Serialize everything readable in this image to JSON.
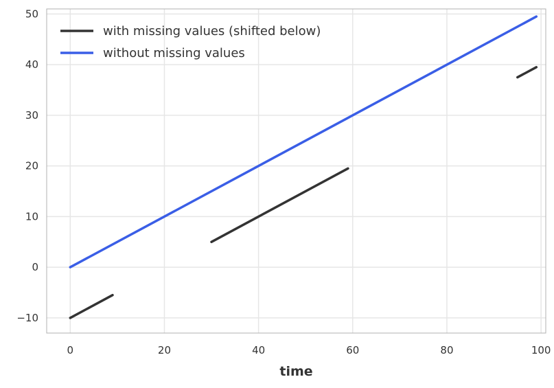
{
  "chart_data": {
    "type": "line",
    "xlabel": "time",
    "ylabel": "",
    "xlim": [
      -5,
      101
    ],
    "ylim": [
      -13,
      51
    ],
    "xticks": [
      0,
      20,
      40,
      60,
      80,
      100
    ],
    "yticks": [
      -10,
      0,
      10,
      20,
      30,
      40,
      50
    ],
    "xtick_labels": [
      "0",
      "20",
      "40",
      "60",
      "80",
      "100"
    ],
    "ytick_labels": [
      "−10",
      "0",
      "10",
      "20",
      "30",
      "40",
      "50"
    ],
    "grid": true,
    "legend_position": "top-left",
    "series": [
      {
        "name": "with missing values (shifted below)",
        "color": "#333333",
        "segments": [
          [
            [
              0,
              -10
            ],
            [
              9,
              -5.5
            ]
          ],
          [
            [
              30,
              5
            ],
            [
              59,
              19.5
            ]
          ],
          [
            [
              95,
              37.5
            ],
            [
              99,
              39.5
            ]
          ]
        ]
      },
      {
        "name": "without missing values",
        "color": "#3a5ee6",
        "segments": [
          [
            [
              0,
              0
            ],
            [
              99,
              49.5
            ]
          ]
        ]
      }
    ]
  }
}
